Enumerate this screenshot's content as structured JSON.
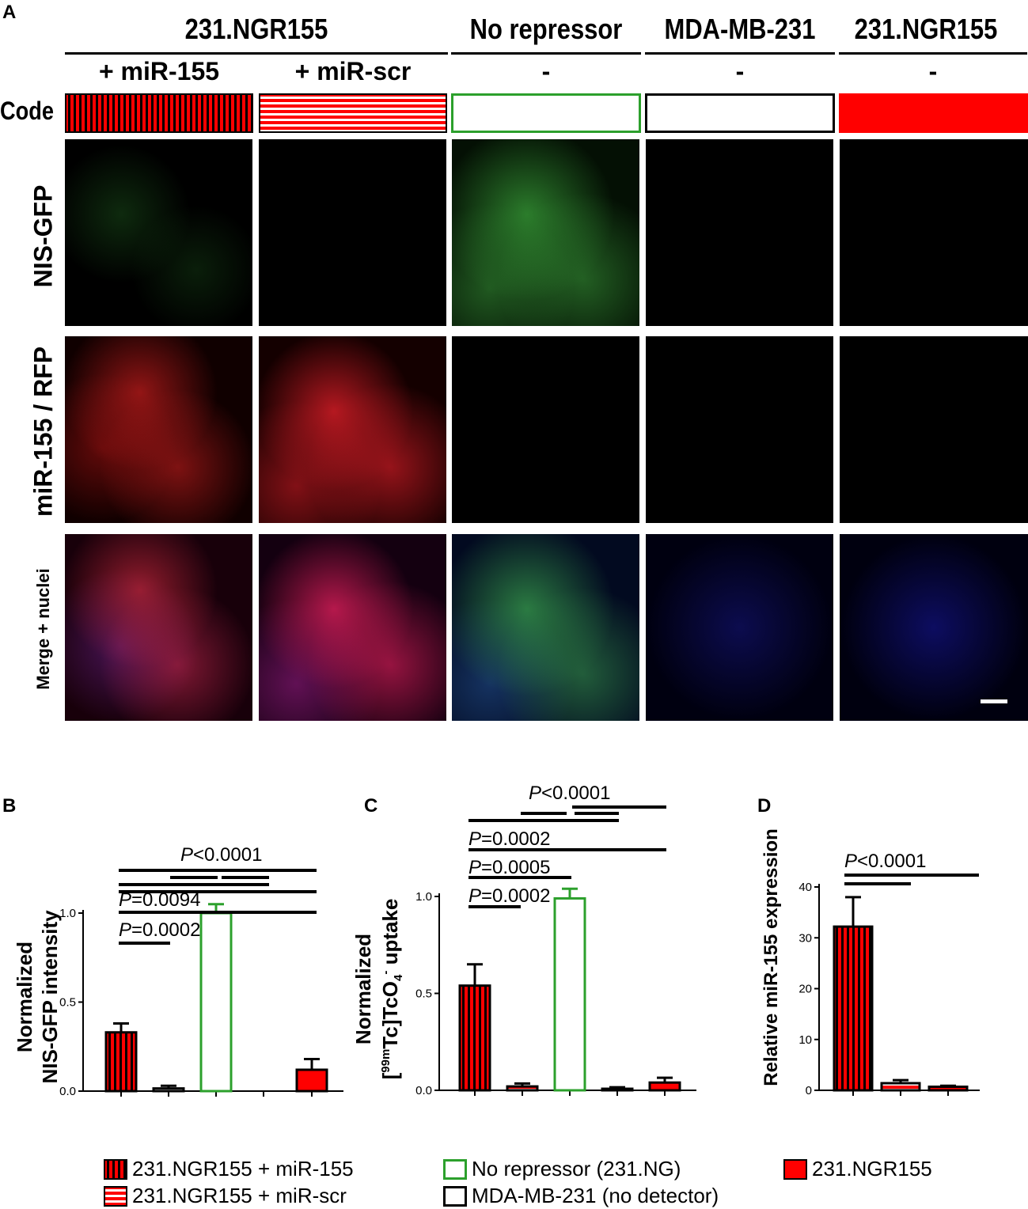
{
  "panels": {
    "a": "A",
    "b": "B",
    "c": "C",
    "d": "D"
  },
  "panel_a": {
    "group_headers": [
      "231.NGR155",
      "No repressor",
      "MDA-MB-231",
      "231.NGR155"
    ],
    "subheaders": [
      "+ miR-155",
      "+ miR-scr",
      "-",
      "-",
      "-"
    ],
    "code_label": "Code",
    "row_labels": [
      "NIS-GFP",
      "miR-155 / RFP",
      "Merge + nuclei"
    ]
  },
  "colors": {
    "red": "#ff0000",
    "dark_red": "#c00000",
    "green": "#2ca02c",
    "black": "#000000"
  },
  "chart_data": [
    {
      "type": "bar",
      "panel": "B",
      "ylabel": [
        "Normalized",
        "NIS-GFP intensity"
      ],
      "yticks": [
        "0.0",
        "0.5",
        "1.0"
      ],
      "ylim": [
        0,
        1.0
      ],
      "categories": [
        "231.NGR155 + miR-155",
        "231.NGR155 + miR-scr",
        "No repressor (231.NG)",
        "MDA-MB-231 (no detector)",
        "231.NGR155"
      ],
      "values": [
        0.33,
        0.015,
        1.0,
        0.0,
        0.12
      ],
      "errors": [
        0.05,
        0.015,
        0.05,
        0.0,
        0.06
      ],
      "pvalues": [
        {
          "text": "P",
          "rest": "<0.0001"
        },
        {
          "text": "P",
          "rest": "=0.0094"
        },
        {
          "text": "P",
          "rest": "=0.0002"
        }
      ]
    },
    {
      "type": "bar",
      "panel": "C",
      "ylabel_line1": "Normalized",
      "ylabel_line2_pre": "[",
      "ylabel_sup1": "99m",
      "ylabel_mid": "Tc]TcO",
      "ylabel_sub": "4",
      "ylabel_sup2": "-",
      "ylabel_end": " uptake",
      "yticks": [
        "0.0",
        "0.5",
        "1.0"
      ],
      "ylim": [
        0,
        1.0
      ],
      "categories": [
        "231.NGR155 + miR-155",
        "231.NGR155 + miR-scr",
        "No repressor (231.NG)",
        "MDA-MB-231 (no detector)",
        "231.NGR155"
      ],
      "values": [
        0.54,
        0.02,
        0.99,
        0.008,
        0.04
      ],
      "errors": [
        0.11,
        0.015,
        0.05,
        0.008,
        0.025
      ],
      "pvalues": [
        {
          "text": "P",
          "rest": "<0.0001"
        },
        {
          "text": "P",
          "rest": "=0.0002"
        },
        {
          "text": "P",
          "rest": "=0.0005"
        },
        {
          "text": "P",
          "rest": "=0.0002"
        }
      ]
    },
    {
      "type": "bar",
      "panel": "D",
      "ylabel": "Relative miR-155 expression",
      "yticks": [
        "0",
        "10",
        "20",
        "30",
        "40"
      ],
      "ylim": [
        0,
        40
      ],
      "categories": [
        "231.NGR155 + miR-155",
        "231.NGR155 + miR-scr",
        "231.NGR155"
      ],
      "values": [
        32.2,
        1.4,
        0.7
      ],
      "errors": [
        5.8,
        0.6,
        0.2
      ],
      "pvalues": [
        {
          "text": "P",
          "rest": "<0.0001"
        }
      ]
    }
  ],
  "legend": [
    {
      "label": "231.NGR155 + miR-155",
      "style": "vstripe"
    },
    {
      "label": "231.NGR155 + miR-scr",
      "style": "hstripe"
    },
    {
      "label": "No repressor (231.NG)",
      "style": "green"
    },
    {
      "label": "MDA-MB-231 (no detector)",
      "style": "black"
    },
    {
      "label": "231.NGR155",
      "style": "red"
    }
  ]
}
